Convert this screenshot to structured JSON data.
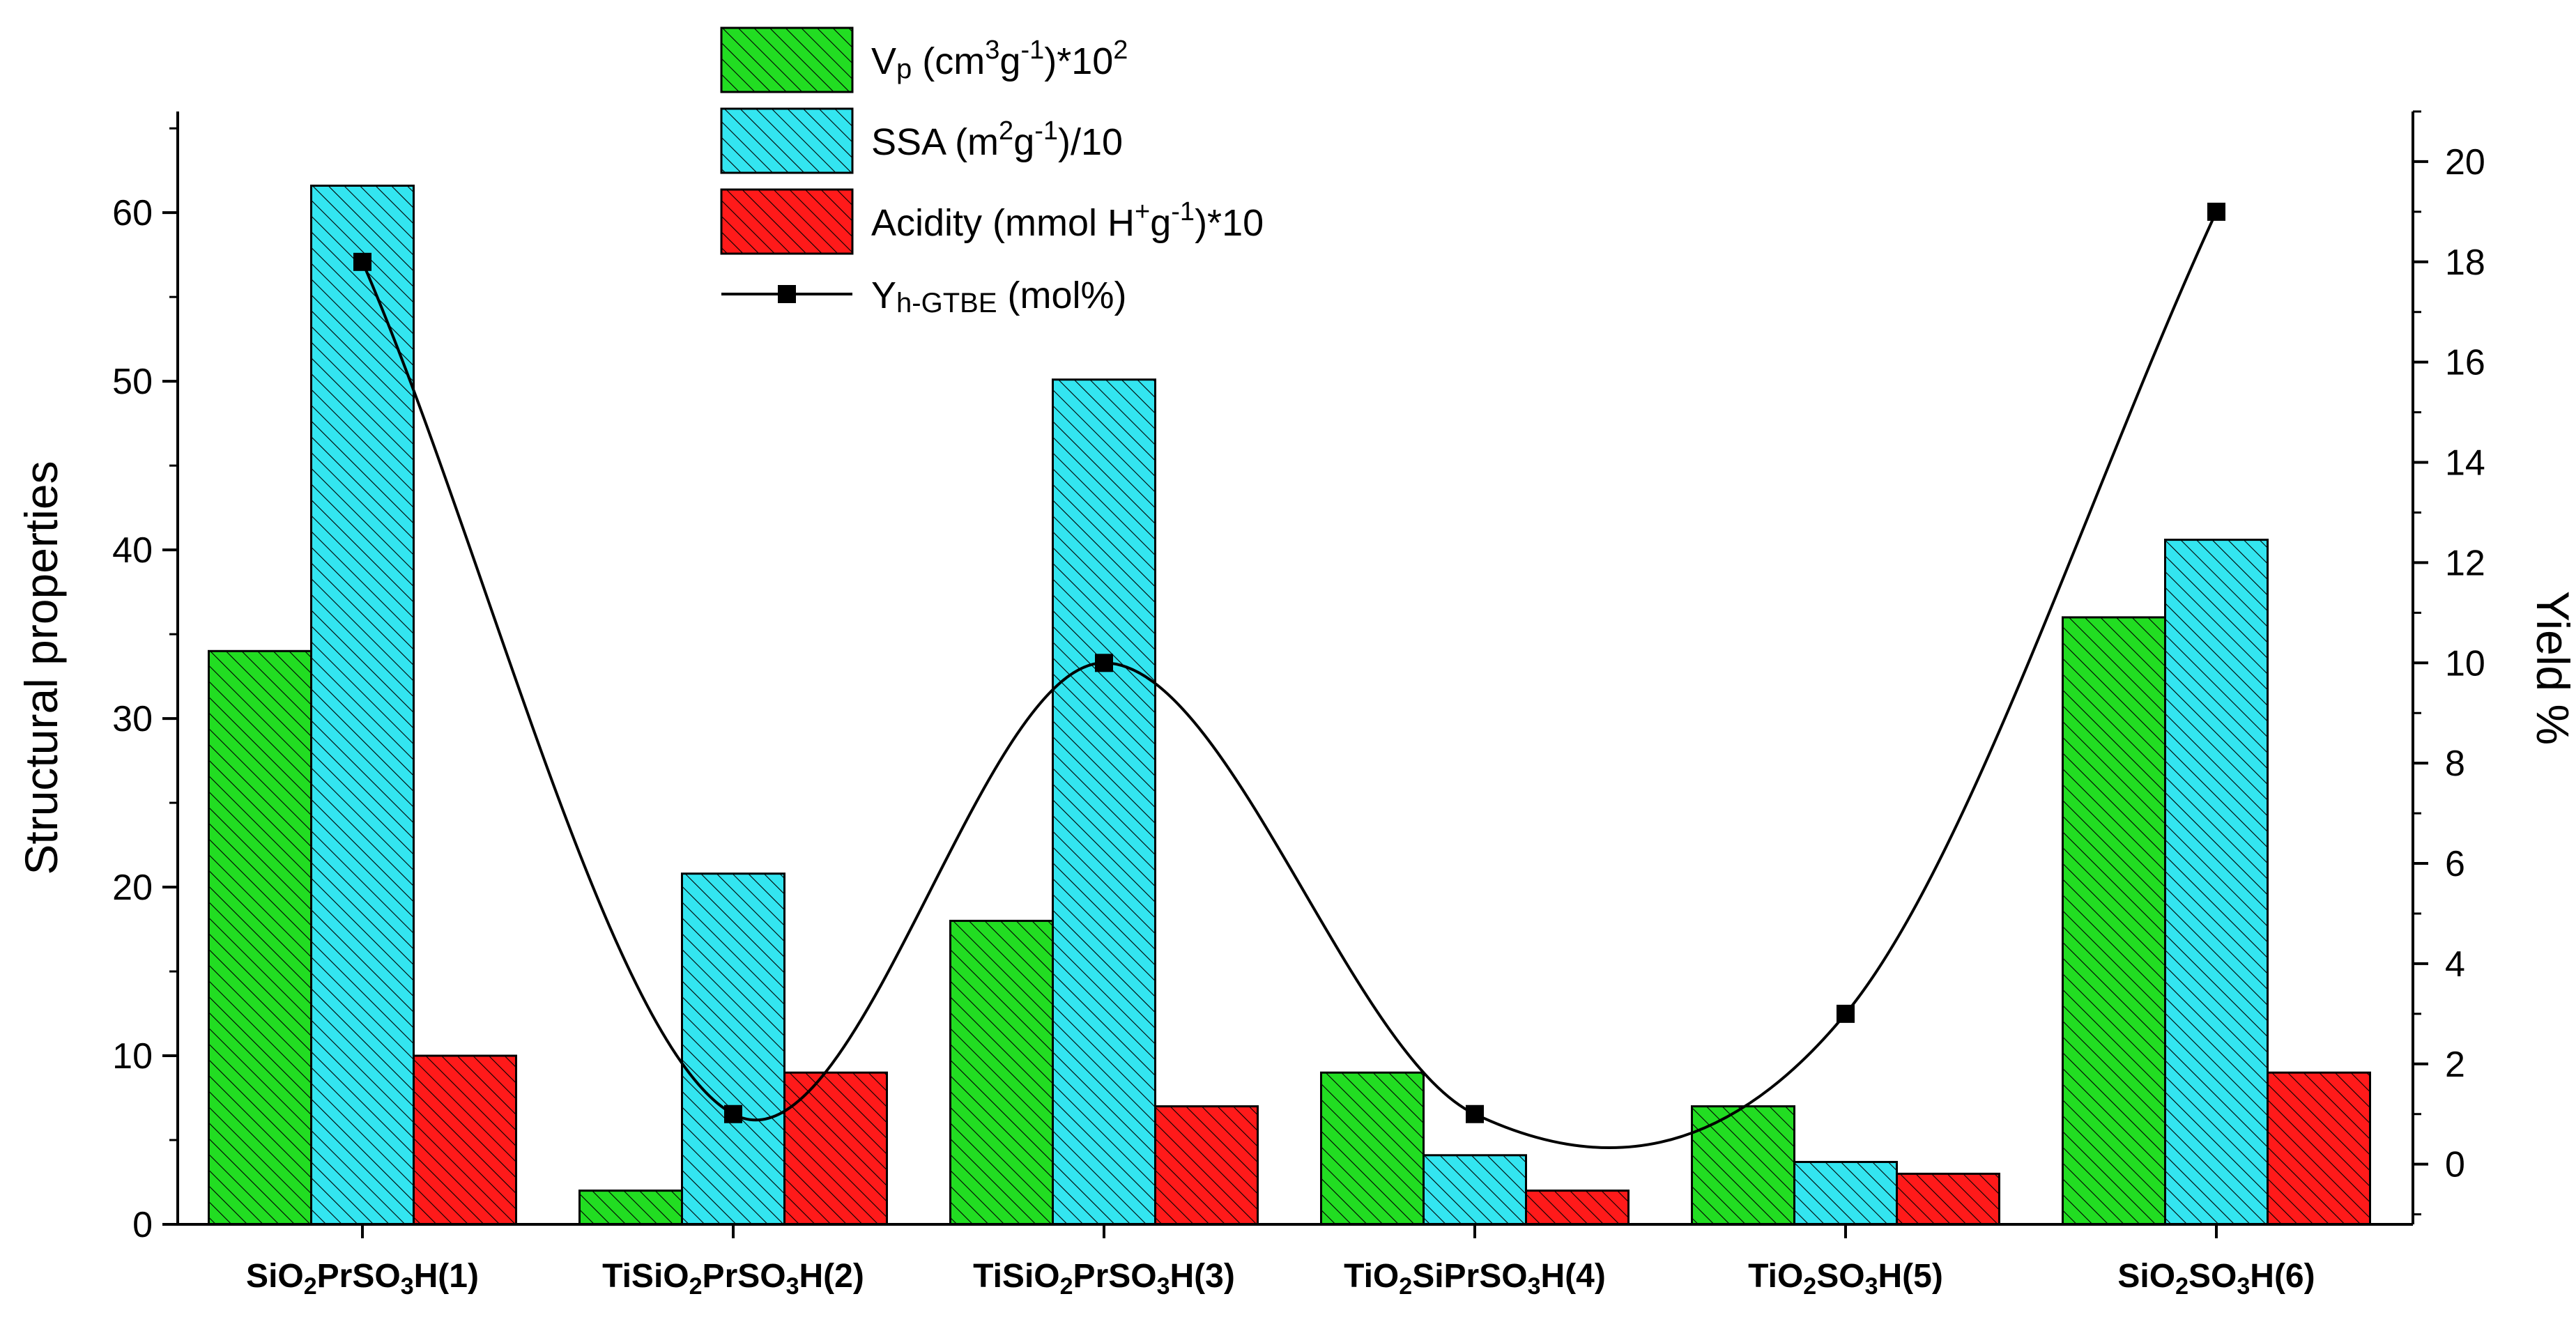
{
  "chart_data": {
    "type": "bar",
    "categories": [
      {
        "main": "SiO",
        "sub1": "2",
        "mid": "PrSO",
        "sub2": "3",
        "tail": "H(1)"
      },
      {
        "main": "TiSiO",
        "sub1": "2",
        "mid": "PrSO",
        "sub2": "3",
        "tail": "H(2)"
      },
      {
        "main": "TiSiO",
        "sub1": "2",
        "mid": "PrSO",
        "sub2": "3",
        "tail": "H(3)"
      },
      {
        "main": "TiO",
        "sub1": "2",
        "mid": "SiPrSO",
        "sub2": "3",
        "tail": "H(4)"
      },
      {
        "main": "TiO",
        "sub1": "2",
        "mid": "SO",
        "sub2": "3",
        "tail": "H(5)"
      },
      {
        "main": "SiO",
        "sub1": "2",
        "mid": "SO",
        "sub2": "3",
        "tail": "H(6)"
      }
    ],
    "series": [
      {
        "name": "Vp",
        "axis": "left",
        "color": "#22dd22",
        "legend": {
          "base": "V",
          "sub": "p",
          "rest1": " (cm",
          "sup1": "3",
          "rest2": "g",
          "sup2": "-1",
          "rest3": ")*10",
          "sup3": "2"
        },
        "values": [
          34,
          2,
          18,
          9,
          7,
          36
        ]
      },
      {
        "name": "SSA",
        "axis": "left",
        "color": "#33e5f0",
        "legend": {
          "base": "SSA (m",
          "sup1": "2",
          "rest1": "g",
          "sup2": "-1",
          "rest2": ")/10"
        },
        "values": [
          61.6,
          20.8,
          50.1,
          4.1,
          3.7,
          40.6
        ]
      },
      {
        "name": "Acidity",
        "axis": "left",
        "color": "#ff1a1a",
        "legend": {
          "base": "Acidity (mmol H",
          "sup1": "+",
          "rest1": "g",
          "sup2": "-1",
          "rest2": ")*10"
        },
        "values": [
          10,
          9,
          7,
          2,
          3,
          9
        ]
      },
      {
        "name": "Yh-GTBE",
        "axis": "right",
        "type": "line",
        "color": "#000000",
        "legend": {
          "base": "Y",
          "sub": "h-GTBE",
          "rest": " (mol%)"
        },
        "values": [
          18,
          1,
          10,
          1,
          3,
          19
        ]
      }
    ],
    "ylabel": "Structural properties",
    "y2label": "Yield %",
    "ylim": [
      0,
      66
    ],
    "y2lim": [
      -1.2,
      21
    ],
    "yticks": [
      0,
      10,
      20,
      30,
      40,
      50,
      60
    ],
    "y2ticks": [
      0,
      2,
      4,
      6,
      8,
      10,
      12,
      14,
      16,
      18,
      20
    ],
    "legend_position": "top-center"
  }
}
